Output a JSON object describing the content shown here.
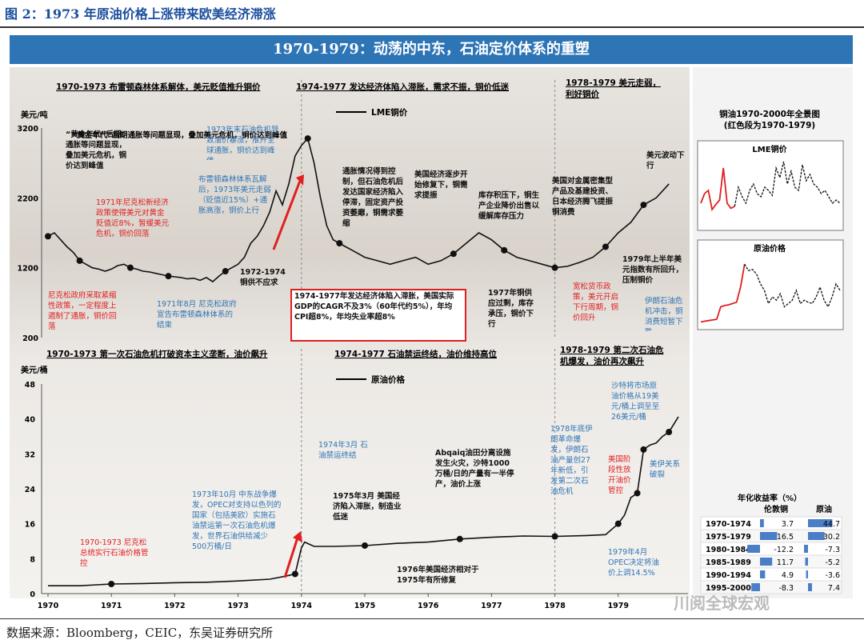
{
  "figure_title": "图 2：1973 年原油价格上涨带来欧美经济滞涨",
  "banner": "1970-1979：动荡的中东，石油定价体系的重塑",
  "source": "数据来源：Bloomberg，CEIC，东吴证券研究所",
  "watermark": "川阅全球宏观",
  "colors": {
    "accent_blue": "#2e75b6",
    "red": "#e02020",
    "note_blue": "#2e75b6",
    "note_red": "#e02020"
  },
  "copper": {
    "section_titles": [
      "1970-1973 布雷顿森林体系解体，美元贬值推升铜价",
      "1974-1977 发达经济体陷入滞胀，需求不振，铜价低迷",
      "1978-1979 美元走弱，",
      "利好铜价"
    ],
    "legend": "LME铜价",
    "yunit": "美元/吨",
    "ticks": [
      "3200",
      "2200",
      "1200",
      "200"
    ],
    "chart_data": {
      "type": "line",
      "ylim": [
        200,
        3200
      ],
      "x": [
        1970.0,
        1970.1,
        1970.2,
        1970.3,
        1970.4,
        1970.5,
        1970.6,
        1970.7,
        1970.8,
        1970.9,
        1971.0,
        1971.1,
        1971.2,
        1971.3,
        1971.4,
        1971.5,
        1971.6,
        1971.7,
        1971.8,
        1971.9,
        1972.0,
        1972.1,
        1972.2,
        1972.3,
        1972.4,
        1972.5,
        1972.6,
        1972.7,
        1972.8,
        1972.9,
        1973.0,
        1973.1,
        1973.2,
        1973.3,
        1973.4,
        1973.5,
        1973.6,
        1973.7,
        1973.8,
        1973.9,
        1974.0,
        1974.1,
        1974.2,
        1974.3,
        1974.4,
        1974.5,
        1974.6,
        1974.7,
        1974.8,
        1974.9,
        1975.0,
        1975.2,
        1975.4,
        1975.6,
        1975.8,
        1976.0,
        1976.2,
        1976.4,
        1976.6,
        1976.8,
        1977.0,
        1977.2,
        1977.4,
        1977.6,
        1977.8,
        1978.0,
        1978.2,
        1978.4,
        1978.6,
        1978.8,
        1979.0,
        1979.2,
        1979.4,
        1979.6,
        1979.8
      ],
      "values": [
        1650,
        1700,
        1600,
        1500,
        1420,
        1300,
        1250,
        1200,
        1180,
        1150,
        1180,
        1230,
        1250,
        1200,
        1180,
        1150,
        1140,
        1120,
        1100,
        1080,
        1070,
        1060,
        1040,
        1050,
        1020,
        1060,
        1000,
        1080,
        1150,
        1200,
        1250,
        1350,
        1550,
        1650,
        1800,
        2000,
        2300,
        2100,
        2400,
        2800,
        2950,
        3050,
        2700,
        2200,
        1800,
        1600,
        1550,
        1500,
        1450,
        1400,
        1350,
        1300,
        1250,
        1300,
        1350,
        1250,
        1300,
        1400,
        1550,
        1700,
        1600,
        1450,
        1350,
        1300,
        1250,
        1200,
        1220,
        1280,
        1350,
        1500,
        1700,
        1850,
        2100,
        2200,
        2400
      ]
    },
    "annotations": [
      {
        "text": "“黄金年代”后期通胀等问题显现，叠加美元危机，铜价达到峰值",
        "color": "black"
      },
      {
        "text": "1971年尼克松新经济政策使得美元对黄金贬值近8%，暂缓美元危机，铜价回落",
        "color": "red"
      },
      {
        "text": "尼克松政府采取紧缩性政策，一定程度上遏制了通胀，铜价回落",
        "color": "red"
      },
      {
        "text": "1971年8月 尼克松政府宣告布雷顿森林体系的结束",
        "color": "blue"
      },
      {
        "text": "1973年末石油危机导致油价暴涨，推升全球通胀，铜价达到峰值",
        "color": "blue"
      },
      {
        "text": "布雷顿森林体系瓦解后，1973年美元走弱（贬值近15%）+通胀高涨，铜价上行",
        "color": "blue"
      },
      {
        "text": "1972-1974 铜供不应求",
        "color": "black"
      },
      {
        "text": "通胀情况得到控制，但石油危机后发达国家经济陷入停滞，固定资产投资萎靡，铜需求萎缩",
        "color": "black"
      },
      {
        "text": "美国经济逐步开始修复下，铜需求提振",
        "color": "black"
      },
      {
        "text": "库存积压下，铜生产企业降价出售以缓解库存压力",
        "color": "black"
      },
      {
        "text": "美国对金属密集型产品及基建投资、日本经济腾飞提振铜消费",
        "color": "black"
      },
      {
        "text": "美元波动下行",
        "color": "black"
      },
      {
        "text": "1979年上半年美元指数有所回升，压制铜价",
        "color": "black"
      },
      {
        "text": "伊朗石油危机冲击，铜消费短暂下跌",
        "color": "blue"
      },
      {
        "text": "宽松货币政策，美元开启下行周期，铜价回升",
        "color": "red"
      },
      {
        "text": "1977年铜供应过剩，库存承压，铜价下行",
        "color": "black"
      },
      {
        "text": "1974-1977年发达经济体陷入滞胀，美国实际GDP的CAGR不及3%（60年代约5%），年均CPI超8%，年均失业率超8%",
        "color": "black"
      }
    ]
  },
  "oil": {
    "section_titles": [
      "1970-1973 第一次石油危机打破资本主义垄断，油价飙升",
      "1974-1977 石油禁运终结，油价维持高位",
      "1978-1979 第二次石油危",
      "机爆发，油价再次飙升"
    ],
    "legend": "原油价格",
    "yunit": "美元/桶",
    "ticks": [
      "48",
      "40",
      "32",
      "24",
      "16",
      "8",
      "0"
    ],
    "xticks": [
      "1970",
      "1971",
      "1972",
      "1973",
      "1974",
      "1975",
      "1976",
      "1977",
      "1978",
      "1979"
    ],
    "chart_data": {
      "type": "line",
      "ylim": [
        0,
        48
      ],
      "x": [
        1970.0,
        1970.5,
        1971.0,
        1971.5,
        1972.0,
        1972.5,
        1973.0,
        1973.5,
        1973.75,
        1973.9,
        1974.0,
        1974.05,
        1974.2,
        1974.5,
        1975.0,
        1975.5,
        1976.0,
        1976.5,
        1977.0,
        1977.5,
        1978.0,
        1978.5,
        1978.8,
        1979.0,
        1979.1,
        1979.2,
        1979.3,
        1979.4,
        1979.5,
        1979.6,
        1979.7,
        1979.8,
        1979.95
      ],
      "values": [
        1.8,
        1.8,
        2.2,
        2.3,
        2.5,
        2.6,
        2.9,
        3.3,
        4.0,
        4.5,
        10.5,
        11.8,
        10.8,
        10.8,
        11.0,
        11.5,
        11.8,
        12.5,
        12.9,
        13.2,
        13.1,
        13.3,
        13.5,
        16.0,
        18.0,
        22.0,
        23.0,
        33.0,
        34.0,
        34.5,
        36.0,
        37.0,
        40.5
      ]
    },
    "annotations": [
      {
        "text": "1970-1973 尼克松总统实行石油价格管控",
        "color": "red"
      },
      {
        "text": "1973年10月 中东战争爆发，OPEC对支持以色列的国家（包括美欧）实施石油禁运第一次石油危机爆发，世界石油供给减少500万桶/日",
        "color": "blue"
      },
      {
        "text": "1974年3月 石油禁运终结",
        "color": "blue"
      },
      {
        "text": "1975年3月 美国经济陷入滞胀，制造业低迷",
        "color": "black"
      },
      {
        "text": "Abqaiq油田分离设施发生火灾，沙特1000万桶/日的产量有一半停产，油价上涨",
        "color": "black"
      },
      {
        "text": "1976年美国经济相对于1975年有所修复",
        "color": "black"
      },
      {
        "text": "1978年底伊朗革命爆发，伊朗石油产量创27年新低，引发第二次石油危机",
        "color": "blue"
      },
      {
        "text": "美国阶段性放开油价管控",
        "color": "red"
      },
      {
        "text": "沙特将市场原油价格从19美元/桶上调至至26美元/桶",
        "color": "blue"
      },
      {
        "text": "美伊关系破裂",
        "color": "blue"
      },
      {
        "text": "1979年4月 OPEC决定将油价上调14.5%",
        "color": "blue"
      }
    ]
  },
  "side": {
    "title": "铜油1970-2000年全景图",
    "subtitle": "(红色段为1970-1979)",
    "copper_label": "LME铜价",
    "oil_label": "原油价格",
    "copper_spark": [
      0.3,
      0.45,
      0.5,
      0.2,
      0.28,
      0.35,
      0.85,
      0.3,
      0.22,
      0.25,
      0.55,
      0.4,
      0.3,
      0.5,
      0.6,
      0.45,
      0.4,
      0.55,
      0.5,
      0.42,
      0.85,
      0.7,
      0.95,
      0.6,
      0.8,
      0.55,
      0.5,
      0.9,
      0.65,
      0.75,
      0.6,
      0.55,
      0.45,
      0.5,
      0.4,
      0.3,
      0.35,
      0.3
    ],
    "oil_spark": [
      0.02,
      0.03,
      0.04,
      0.05,
      0.06,
      0.25,
      0.27,
      0.28,
      0.3,
      0.32,
      0.55,
      0.9,
      0.8,
      0.82,
      0.75,
      0.6,
      0.5,
      0.3,
      0.4,
      0.35,
      0.45,
      0.25,
      0.3,
      0.35,
      0.5,
      0.3,
      0.35,
      0.32,
      0.3,
      0.4,
      0.55,
      0.35,
      0.25,
      0.4,
      0.6,
      0.5
    ],
    "table_title": "年化收益率（%）",
    "table_headers": [
      "伦敦铜",
      "原油"
    ],
    "table_rows": [
      {
        "period": "1970-1974",
        "copper": "3.7",
        "oil": "44.7"
      },
      {
        "period": "1975-1979",
        "copper": "16.5",
        "oil": "30.2"
      },
      {
        "period": "1980-1984",
        "copper": "-12.2",
        "oil": "-7.3"
      },
      {
        "period": "1985-1989",
        "copper": "11.7",
        "oil": "-5.2"
      },
      {
        "period": "1990-1994",
        "copper": "4.9",
        "oil": "-3.6"
      },
      {
        "period": "1995-2000",
        "copper": "-8.3",
        "oil": "7.4"
      }
    ]
  }
}
